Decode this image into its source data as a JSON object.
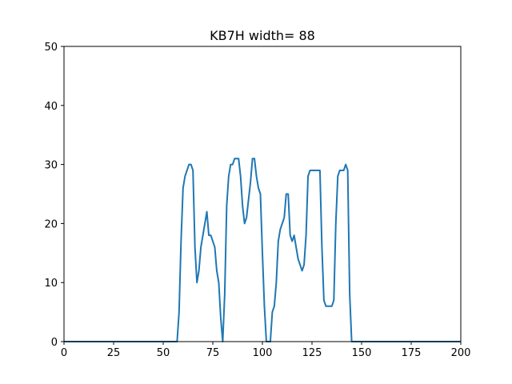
{
  "chart_data": {
    "type": "line",
    "title": "KB7H width= 88",
    "xlabel": "",
    "ylabel": "",
    "xlim": [
      0,
      200
    ],
    "ylim": [
      0,
      50
    ],
    "xticks": [
      0,
      25,
      50,
      75,
      100,
      125,
      150,
      175,
      200
    ],
    "yticks": [
      0,
      10,
      20,
      30,
      40,
      50
    ],
    "grid": false,
    "series": [
      {
        "color": "#1f77b4",
        "x": [
          0,
          57,
          58,
          59,
          60,
          61,
          62,
          63,
          64,
          65,
          66,
          67,
          68,
          69,
          70,
          71,
          72,
          73,
          74,
          75,
          76,
          77,
          78,
          79,
          80,
          81,
          82,
          83,
          84,
          85,
          86,
          87,
          88,
          89,
          90,
          91,
          92,
          93,
          94,
          95,
          96,
          97,
          98,
          99,
          100,
          101,
          102,
          103,
          104,
          105,
          106,
          107,
          108,
          109,
          110,
          111,
          112,
          113,
          114,
          115,
          116,
          117,
          118,
          119,
          120,
          121,
          122,
          123,
          124,
          125,
          126,
          127,
          128,
          129,
          130,
          131,
          132,
          133,
          134,
          135,
          136,
          137,
          138,
          139,
          140,
          141,
          142,
          143,
          144,
          145,
          200
        ],
        "values": [
          0,
          0,
          5,
          17,
          26,
          28,
          29,
          30,
          30,
          29,
          16,
          10,
          12,
          16,
          18,
          20,
          22,
          18,
          18,
          17,
          16,
          12,
          10,
          4,
          0,
          8,
          23,
          28,
          30,
          30,
          31,
          31,
          31,
          28,
          23,
          20,
          21,
          24,
          27,
          31,
          31,
          28,
          26,
          25,
          15,
          6,
          0,
          0,
          0,
          5,
          6,
          10,
          17,
          19,
          20,
          21,
          25,
          25,
          18,
          17,
          18,
          16,
          14,
          13,
          12,
          13,
          18,
          28,
          29,
          29,
          29,
          29,
          29,
          29,
          16,
          7,
          6,
          6,
          6,
          6,
          7,
          20,
          28,
          29,
          29,
          29,
          30,
          29,
          8,
          0,
          0
        ]
      }
    ]
  }
}
